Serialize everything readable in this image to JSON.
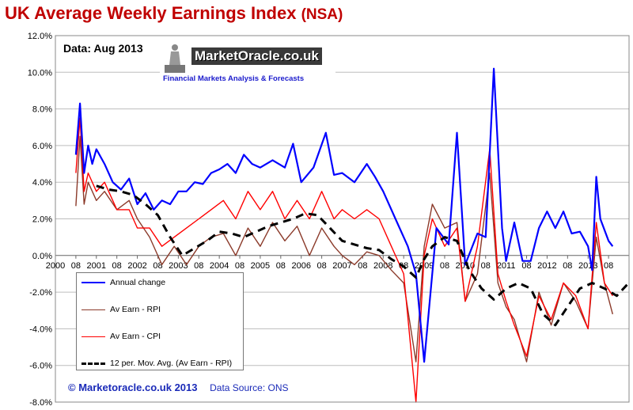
{
  "title": "UK Average Weekly Earnings Index",
  "title_suffix": "(NSA)",
  "date_label": "Data: Aug 2013",
  "logo": {
    "brand": "MarketOracle.co.uk",
    "tagline": "Financial Markets Analysis & Forecasts"
  },
  "footer": {
    "copyright": "© Marketoracle.co.uk 2013",
    "source": "Data Source: ONS"
  },
  "colors": {
    "annual": "#0000ff",
    "rpi": "#8b3a2a",
    "cpi": "#ff0000",
    "mavg": "#000000",
    "grid": "#bdbdbd",
    "title": "#c00000"
  },
  "chart_data": {
    "type": "line",
    "title": "UK Average Weekly Earnings Index (NSA)",
    "xlabel": "",
    "ylabel": "",
    "ylim": [
      -8,
      12
    ],
    "xlim": [
      2000,
      2014
    ],
    "y_ticks": [
      "-8.0%",
      "-6.0%",
      "-4.0%",
      "-2.0%",
      "0.0%",
      "2.0%",
      "4.0%",
      "6.0%",
      "8.0%",
      "10.0%",
      "12.0%"
    ],
    "x_tick_labels": [
      "2000",
      "08",
      "2001",
      "08",
      "2002",
      "08",
      "2003",
      "08",
      "2004",
      "08",
      "2005",
      "08",
      "2006",
      "08",
      "2007",
      "08",
      "2008",
      "08",
      "2009",
      "08",
      "2010",
      "08",
      "2011",
      "08",
      "2012",
      "08",
      "2013",
      "08"
    ],
    "legend": [
      {
        "label": "Annual change",
        "key": "annual"
      },
      {
        "label": "Av Earn - RPI",
        "key": "rpi"
      },
      {
        "label": "Av Earn - CPI",
        "key": "cpi"
      },
      {
        "label": "12 per. Mov. Avg. (Av Earn - RPI)",
        "key": "mavg"
      }
    ],
    "series": [
      {
        "name": "Annual change",
        "key": "annual",
        "x": [
          2000.5,
          2000.6,
          2000.7,
          2000.8,
          2000.9,
          2001.0,
          2001.2,
          2001.4,
          2001.6,
          2001.8,
          2002.0,
          2002.2,
          2002.4,
          2002.6,
          2002.8,
          2003.0,
          2003.2,
          2003.4,
          2003.6,
          2003.8,
          2004.0,
          2004.2,
          2004.4,
          2004.6,
          2004.8,
          2005.0,
          2005.3,
          2005.6,
          2005.8,
          2006.0,
          2006.3,
          2006.6,
          2006.8,
          2007.0,
          2007.3,
          2007.6,
          2007.8,
          2008.0,
          2008.3,
          2008.6,
          2008.8,
          2009.0,
          2009.3,
          2009.6,
          2009.8,
          2010.0,
          2010.3,
          2010.5,
          2010.7,
          2010.9,
          2011.0,
          2011.2,
          2011.4,
          2011.6,
          2011.8,
          2012.0,
          2012.2,
          2012.4,
          2012.6,
          2012.8,
          2013.0,
          2013.1,
          2013.2,
          2013.3,
          2013.5,
          2013.6
        ],
        "values": [
          5.5,
          8.3,
          4.5,
          6.0,
          5.0,
          5.8,
          5.0,
          4.0,
          3.6,
          4.2,
          2.8,
          3.4,
          2.5,
          3.0,
          2.8,
          3.5,
          3.5,
          4.0,
          3.9,
          4.5,
          4.7,
          5.0,
          4.5,
          5.5,
          5.0,
          4.8,
          5.2,
          4.8,
          6.1,
          4.0,
          4.8,
          6.7,
          4.4,
          4.5,
          4.0,
          5.0,
          4.3,
          3.5,
          2.0,
          0.5,
          -1.0,
          -5.8,
          1.5,
          0.6,
          6.7,
          -0.5,
          1.2,
          1.0,
          10.2,
          1.5,
          -0.3,
          1.8,
          -0.3,
          -0.3,
          1.5,
          2.4,
          1.5,
          2.4,
          1.2,
          1.3,
          0.5,
          -0.8,
          4.3,
          2.0,
          0.8,
          0.5
        ]
      },
      {
        "name": "Av Earn - RPI",
        "key": "rpi",
        "x": [
          2000.5,
          2000.6,
          2000.7,
          2000.8,
          2001.0,
          2001.2,
          2001.5,
          2001.8,
          2002.0,
          2002.3,
          2002.6,
          2002.9,
          2003.2,
          2003.5,
          2003.8,
          2004.1,
          2004.4,
          2004.7,
          2005.0,
          2005.3,
          2005.6,
          2005.9,
          2006.2,
          2006.5,
          2006.8,
          2007.0,
          2007.3,
          2007.6,
          2007.9,
          2008.2,
          2008.5,
          2008.8,
          2009.0,
          2009.2,
          2009.5,
          2009.8,
          2010.0,
          2010.3,
          2010.6,
          2010.8,
          2011.0,
          2011.2,
          2011.5,
          2011.8,
          2012.1,
          2012.4,
          2012.7,
          2013.0,
          2013.2,
          2013.4,
          2013.6
        ],
        "values": [
          2.7,
          6.5,
          2.8,
          4.0,
          3.0,
          3.5,
          2.5,
          3.0,
          2.0,
          1.0,
          -0.5,
          0.5,
          -0.5,
          0.5,
          1.0,
          1.2,
          0.0,
          1.5,
          0.5,
          1.8,
          0.8,
          1.6,
          0.0,
          1.5,
          0.5,
          0.0,
          -0.5,
          0.2,
          0.0,
          -0.8,
          -1.5,
          -5.8,
          0.5,
          2.8,
          1.5,
          1.8,
          -2.5,
          -1.0,
          4.5,
          -1.5,
          -2.8,
          -3.5,
          -5.8,
          -2.0,
          -3.8,
          -1.5,
          -2.5,
          -4.0,
          1.0,
          -1.5,
          -3.2
        ]
      },
      {
        "name": "Av Earn - CPI",
        "key": "cpi",
        "x": [
          2000.5,
          2000.6,
          2000.7,
          2000.8,
          2001.0,
          2001.2,
          2001.5,
          2001.8,
          2002.0,
          2002.3,
          2002.6,
          2002.9,
          2003.2,
          2003.5,
          2003.8,
          2004.1,
          2004.4,
          2004.7,
          2005.0,
          2005.3,
          2005.6,
          2005.9,
          2006.2,
          2006.5,
          2006.8,
          2007.0,
          2007.3,
          2007.6,
          2007.9,
          2008.2,
          2008.5,
          2008.8,
          2009.0,
          2009.2,
          2009.5,
          2009.8,
          2010.0,
          2010.3,
          2010.6,
          2010.8,
          2011.0,
          2011.2,
          2011.5,
          2011.8,
          2012.1,
          2012.4,
          2012.7,
          2013.0,
          2013.2,
          2013.4,
          2013.6
        ],
        "values": [
          4.5,
          7.5,
          3.5,
          4.5,
          3.5,
          4.0,
          2.5,
          2.5,
          1.5,
          1.5,
          0.5,
          1.0,
          1.5,
          2.0,
          2.5,
          3.0,
          2.0,
          3.5,
          2.5,
          3.5,
          2.0,
          3.0,
          2.0,
          3.5,
          2.0,
          2.5,
          2.0,
          2.5,
          2.0,
          0.5,
          -1.0,
          -8.0,
          0.0,
          2.0,
          0.5,
          1.5,
          -2.5,
          0.5,
          5.8,
          -1.0,
          -2.5,
          -3.8,
          -5.5,
          -2.2,
          -3.5,
          -1.5,
          -2.2,
          -4.0,
          1.8,
          -1.5,
          -2.2
        ]
      },
      {
        "name": "12 per. Mov. Avg. (Av Earn - RPI)",
        "key": "mavg",
        "x": [
          2001.0,
          2001.3,
          2001.6,
          2001.9,
          2002.2,
          2002.5,
          2002.8,
          2003.1,
          2003.4,
          2003.7,
          2004.0,
          2004.3,
          2004.6,
          2004.9,
          2005.2,
          2005.5,
          2005.8,
          2006.1,
          2006.4,
          2006.7,
          2007.0,
          2007.3,
          2007.6,
          2007.9,
          2008.2,
          2008.5,
          2008.8,
          2009.0,
          2009.2,
          2009.5,
          2009.8,
          2010.1,
          2010.4,
          2010.7,
          2011.0,
          2011.3,
          2011.6,
          2011.9,
          2012.2,
          2012.5,
          2012.8,
          2013.1,
          2013.4,
          2013.7,
          2013.95
        ],
        "values": [
          3.8,
          3.6,
          3.5,
          3.3,
          2.8,
          2.2,
          1.0,
          0.0,
          0.4,
          0.8,
          1.3,
          1.2,
          1.0,
          1.3,
          1.6,
          1.8,
          2.0,
          2.3,
          2.2,
          1.5,
          0.8,
          0.6,
          0.4,
          0.3,
          -0.2,
          -0.6,
          -1.2,
          -0.2,
          0.5,
          1.0,
          0.8,
          -0.8,
          -1.8,
          -2.4,
          -1.8,
          -1.5,
          -1.8,
          -3.2,
          -3.8,
          -2.8,
          -1.8,
          -1.5,
          -1.8,
          -2.2,
          -1.6
        ]
      }
    ]
  }
}
